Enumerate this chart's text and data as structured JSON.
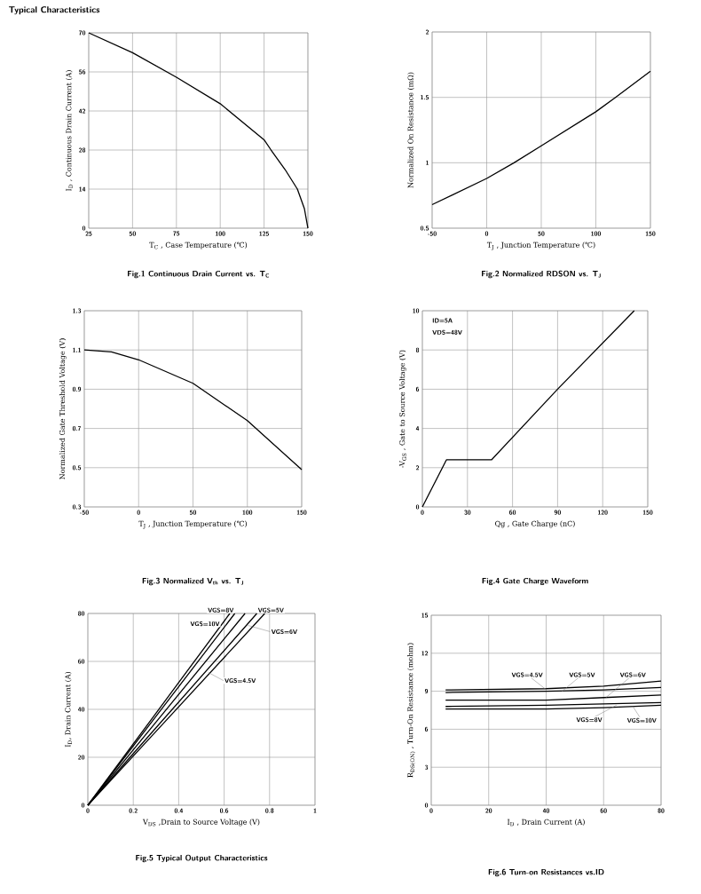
{
  "chart_data": [
    {
      "type": "line",
      "title": "Fig.1 Continuous Drain Current vs. T$_{C}$",
      "xlabel": "T$_{C}$ , Case Temperature (℃)",
      "ylabel": "I$_{D}$ , Continuous Drain Current (A)",
      "annotations": [
        "Typical Characteristics"
      ],
      "xlim": [
        25,
        150
      ],
      "ylim": [
        0,
        70
      ],
      "xticks": [
        25,
        50,
        75,
        100,
        125,
        150
      ],
      "yticks": [
        0,
        14,
        28,
        42,
        56,
        70
      ],
      "grid": true,
      "marker": "none",
      "legend": false,
      "series": [
        {
          "color": "#000000",
          "x": [
            25,
            50,
            75,
            100,
            125,
            129,
            137,
            144,
            148,
            150
          ],
          "values": [
            70,
            62.9,
            54.1,
            44.6,
            31.7,
            28,
            21,
            14,
            7,
            0
          ]
        }
      ]
    },
    {
      "type": "line",
      "title": "Fig.2 Normalized RDSON vs. T$_{J}$",
      "xlabel": "T$_{J}$ , Junction Temperature (℃)",
      "ylabel": "Normalized On Resistance (mΩ)",
      "xlim": [
        -50,
        150
      ],
      "ylim": [
        0.5,
        2
      ],
      "xticks": [
        -50,
        0,
        50,
        100,
        150
      ],
      "yticks": [
        0.5,
        1,
        1.5,
        2
      ],
      "grid": true,
      "marker": "none",
      "legend": false,
      "series": [
        {
          "color": "#000000",
          "x": [
            -50,
            0,
            25,
            50,
            100,
            118,
            150
          ],
          "values": [
            0.68,
            0.88,
            1.0,
            1.13,
            1.39,
            1.5,
            1.7
          ]
        }
      ]
    },
    {
      "type": "line",
      "title": "Fig.3 Normalized V$_{th}$ vs. T$_{J}$",
      "xlabel": "T$_{J}$ , Junction Temperature (℃)",
      "ylabel": "Normalized Gate Threshold Voltage (V)",
      "xlim": [
        -50,
        150
      ],
      "ylim": [
        0.3,
        1.3
      ],
      "xticks": [
        -50,
        0,
        50,
        100,
        150
      ],
      "yticks": [
        0.3,
        0.5,
        0.7,
        0.9,
        1.1,
        1.3
      ],
      "grid": true,
      "marker": "none",
      "legend": false,
      "series": [
        {
          "color": "#000000",
          "x": [
            -50,
            -25,
            0,
            50,
            100,
            150
          ],
          "values": [
            1.1,
            1.09,
            1.05,
            0.93,
            0.74,
            0.49
          ]
        }
      ]
    },
    {
      "type": "line",
      "title": "Fig.4 Gate Charge Waveform",
      "xlabel": "Qg , Gate Charge (nC)",
      "ylabel": "-V$_{GS}$ , Gate to Source Voltage (V)",
      "annotations": [
        "ID=5A",
        "VDS=48V"
      ],
      "xlim": [
        0,
        150
      ],
      "ylim": [
        0,
        10
      ],
      "xticks": [
        0,
        30,
        60,
        90,
        120,
        150
      ],
      "yticks": [
        0,
        2,
        4,
        6,
        8,
        10
      ],
      "grid": true,
      "marker": "none",
      "legend": false,
      "series": [
        {
          "color": "#000000",
          "x": [
            0,
            16,
            46,
            90,
            141
          ],
          "values": [
            0,
            2.4,
            2.4,
            6,
            10
          ]
        }
      ]
    },
    {
      "type": "line",
      "title": "Fig.5 Typical Output Characteristics",
      "xlabel": "V$_{DS}$ ,Drain to Source Voltage (V)",
      "ylabel": "I$_{D}$, Drain Current (A)",
      "xlim": [
        0,
        1
      ],
      "ylim": [
        0,
        80
      ],
      "xticks": [
        0,
        0.2,
        0.4,
        0.6,
        0.8,
        1
      ],
      "yticks": [
        0,
        20,
        40,
        60,
        80
      ],
      "grid": true,
      "marker": "none",
      "legend": false,
      "series": [
        {
          "name": "VGS=10V",
          "color": "#000000",
          "x": [
            0,
            0.3,
            0.625
          ],
          "values": [
            0,
            38.4,
            80
          ]
        },
        {
          "name": "VGS=8V",
          "color": "#000000",
          "x": [
            0,
            0.3,
            0.647
          ],
          "values": [
            0,
            37.1,
            80
          ]
        },
        {
          "name": "VGS=6V",
          "color": "#000000",
          "x": [
            0,
            0.3,
            0.692
          ],
          "values": [
            0,
            34.7,
            80
          ]
        },
        {
          "name": "VGS=5V",
          "color": "#000000",
          "x": [
            0,
            0.3,
            0.744
          ],
          "values": [
            0,
            32.3,
            80
          ]
        },
        {
          "name": "VGS=4.5V",
          "color": "#000000",
          "x": [
            0,
            0.3,
            0.779
          ],
          "values": [
            0,
            30.8,
            80
          ]
        }
      ]
    },
    {
      "type": "line",
      "title": "Fig.6 Turn-on Resistances vs.ID",
      "xlabel": "I$_{D}$ , Drain Current (A)",
      "ylabel": "R$_{DS(ON)}$ , Turn-On Resistance (mohm)",
      "xlim": [
        0,
        80
      ],
      "ylim": [
        0,
        15
      ],
      "xticks": [
        0,
        20,
        40,
        60,
        80
      ],
      "yticks": [
        0,
        3,
        6,
        9,
        12,
        15
      ],
      "grid": true,
      "marker": "none",
      "legend": false,
      "series": [
        {
          "name": "VGS=4.5V",
          "color": "#000000",
          "x": [
            5,
            40,
            60,
            80
          ],
          "values": [
            9.1,
            9.2,
            9.4,
            9.8
          ]
        },
        {
          "name": "VGS=5V",
          "color": "#000000",
          "x": [
            5,
            40,
            60,
            80
          ],
          "values": [
            8.9,
            9.0,
            9.1,
            9.3
          ]
        },
        {
          "name": "VGS=6V",
          "color": "#000000",
          "x": [
            5,
            40,
            60,
            80
          ],
          "values": [
            8.3,
            8.3,
            8.5,
            8.7
          ]
        },
        {
          "name": "VGS=8V",
          "color": "#000000",
          "x": [
            5,
            40,
            60,
            80
          ],
          "values": [
            7.8,
            7.9,
            8.0,
            8.1
          ]
        },
        {
          "name": "VGS=10V",
          "color": "#000000",
          "x": [
            5,
            40,
            60,
            80
          ],
          "values": [
            7.6,
            7.6,
            7.7,
            7.9
          ]
        }
      ]
    }
  ]
}
